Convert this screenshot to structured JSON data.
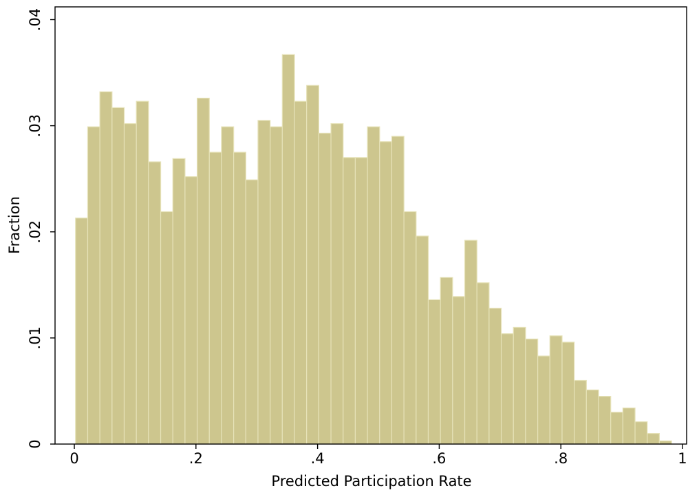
{
  "chart_data": {
    "type": "histogram",
    "xlabel": "Predicted Participation Rate",
    "ylabel": "Fraction",
    "bins": [
      0.002,
      0.022,
      0.042,
      0.062,
      0.082,
      0.102,
      0.122,
      0.142,
      0.162,
      0.182,
      0.202,
      0.222,
      0.242,
      0.262,
      0.282,
      0.302,
      0.322,
      0.342,
      0.362,
      0.382,
      0.402,
      0.422,
      0.442,
      0.462,
      0.482,
      0.502,
      0.522,
      0.542,
      0.562,
      0.582,
      0.602,
      0.622,
      0.642,
      0.662,
      0.682,
      0.702,
      0.722,
      0.742,
      0.762,
      0.782,
      0.802,
      0.822,
      0.842,
      0.862,
      0.882,
      0.902,
      0.922,
      0.942,
      0.962,
      0.982
    ],
    "values": [
      0.0213,
      0.0299,
      0.0332,
      0.0317,
      0.0302,
      0.0323,
      0.0266,
      0.0219,
      0.0269,
      0.0252,
      0.0326,
      0.0275,
      0.0299,
      0.0275,
      0.0249,
      0.0305,
      0.0299,
      0.0367,
      0.0323,
      0.0338,
      0.0293,
      0.0302,
      0.027,
      0.027,
      0.0299,
      0.0285,
      0.029,
      0.0219,
      0.0196,
      0.0136,
      0.0157,
      0.0139,
      0.0192,
      0.0152,
      0.0128,
      0.0104,
      0.011,
      0.0099,
      0.0083,
      0.0102,
      0.0096,
      0.006,
      0.0051,
      0.0045,
      0.003,
      0.0034,
      0.0021,
      0.001,
      0.0003
    ],
    "color": "#cdc68e",
    "xlim": [
      -0.0317,
      1.0068
    ],
    "ylim": [
      0,
      0.0412
    ],
    "xticks": [
      0,
      {
        "value": 0.2,
        "label": ".2"
      },
      {
        "value": 0.4,
        "label": ".4"
      },
      {
        "value": 0.6,
        "label": ".6"
      },
      {
        "value": 0.8,
        "label": ".8"
      },
      1
    ],
    "yticks": [
      0,
      {
        "value": 0.01,
        "label": ".01"
      },
      {
        "value": 0.02,
        "label": ".02"
      },
      {
        "value": 0.03,
        "label": ".03"
      },
      {
        "value": 0.04,
        "label": ".04"
      }
    ]
  }
}
